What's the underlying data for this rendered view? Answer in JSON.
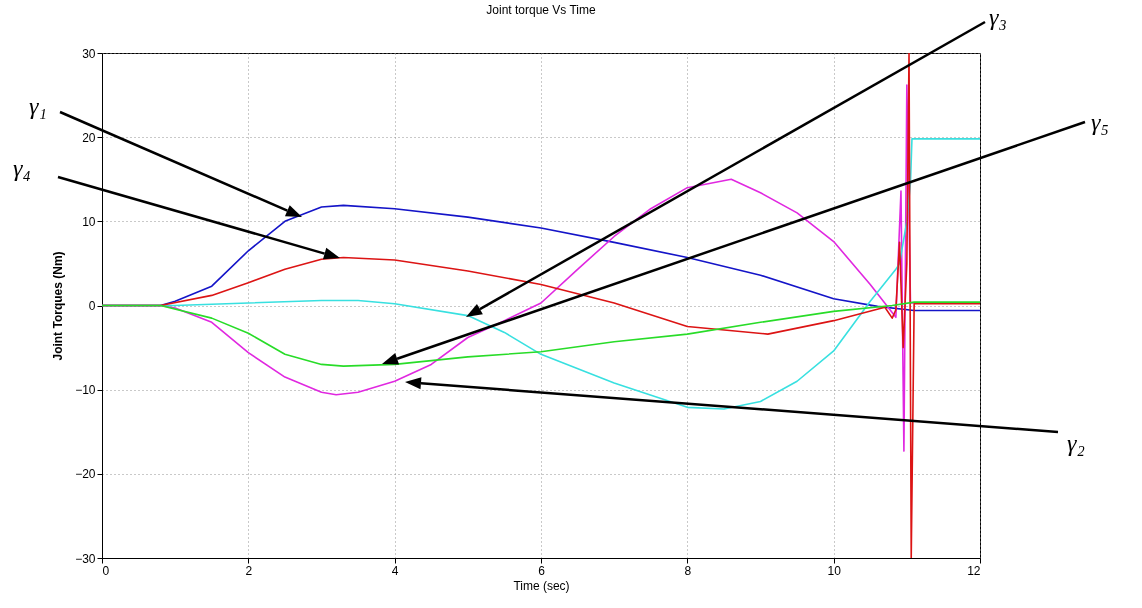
{
  "chart_data": {
    "type": "line",
    "title": "Joint torque Vs Time",
    "xlabel": "Time (sec)",
    "ylabel": "Joint Torques (Nm)",
    "xlim": [
      0,
      12
    ],
    "xticks": [
      0,
      2,
      4,
      6,
      8,
      10,
      12
    ],
    "ylim": [
      -30,
      30
    ],
    "yticks": [
      -30,
      -20,
      -10,
      0,
      10,
      20,
      30
    ],
    "grid": true,
    "line_style": "solid",
    "series": [
      {
        "color": "#1414c8",
        "x": [
          0,
          0.8,
          1,
          1.5,
          2,
          2.5,
          3,
          3.3,
          4,
          5,
          6,
          7,
          8,
          9,
          10,
          10.6,
          11.1,
          12
        ],
        "values": [
          0,
          0,
          0.5,
          2.3,
          6.5,
          10,
          11.7,
          11.9,
          11.5,
          10.5,
          9.2,
          7.5,
          5.7,
          3.6,
          0.8,
          -0.1,
          -0.6,
          -0.6
        ]
      },
      {
        "color": "#e028e0",
        "x": [
          0,
          0.8,
          1,
          1.5,
          2,
          2.5,
          3,
          3.2,
          3.5,
          4,
          4.5,
          5,
          5.5,
          6,
          6.5,
          7,
          7.5,
          8,
          8.6,
          9,
          9.5,
          10,
          10.5,
          10.85,
          10.92,
          10.96,
          11,
          11.05,
          12
        ],
        "values": [
          0,
          0,
          -0.3,
          -2,
          -5.6,
          -8.5,
          -10.3,
          -10.6,
          -10.3,
          -9,
          -7,
          -3.8,
          -1.8,
          0.3,
          4.3,
          8.2,
          11.5,
          14,
          15,
          13.4,
          11,
          7.6,
          2.5,
          -1.4,
          13.6,
          -17.3,
          26.2,
          0.3,
          0.3
        ]
      },
      {
        "color": "#38e0e0",
        "x": [
          0,
          1,
          2,
          3,
          3.5,
          4,
          5,
          5.5,
          6,
          7,
          8,
          8.5,
          9,
          9.5,
          10,
          10.5,
          10.85,
          10.9,
          11,
          11.05,
          11.07,
          12
        ],
        "values": [
          0,
          0,
          0.3,
          0.6,
          0.6,
          0.2,
          -1.2,
          -3.2,
          -5.8,
          -9.2,
          -12.1,
          -12.3,
          -11.4,
          -9,
          -5.4,
          0.5,
          4.3,
          5,
          10,
          14.6,
          19.8,
          19.8
        ]
      },
      {
        "color": "#dc1414",
        "x": [
          0,
          0.8,
          1.5,
          2,
          2.5,
          3,
          3.3,
          4,
          5,
          6,
          7,
          8,
          9.1,
          10,
          10.7,
          10.8,
          10.85,
          10.9,
          10.95,
          11,
          11.03,
          11.06,
          11.1,
          12
        ],
        "values": [
          0,
          0,
          1.2,
          2.7,
          4.3,
          5.5,
          5.7,
          5.4,
          4.1,
          2.5,
          0.3,
          -2.5,
          -3.4,
          -1.8,
          -0.2,
          -1.5,
          -0.5,
          7.5,
          -5,
          5,
          30,
          -30,
          0.2,
          0.2
        ]
      },
      {
        "color": "#28dc28",
        "x": [
          0,
          0.8,
          1.5,
          2,
          2.5,
          3,
          3.3,
          4,
          5,
          6,
          7,
          8,
          9,
          10,
          10.8,
          11.1,
          12
        ],
        "values": [
          0,
          0,
          -1.5,
          -3.3,
          -5.8,
          -7,
          -7.2,
          -7,
          -6.1,
          -5.5,
          -4.3,
          -3.4,
          -2,
          -0.7,
          0,
          0.4,
          0.4
        ]
      }
    ],
    "annotations": [
      "γ₁",
      "γ₂",
      "γ₃",
      "γ₄",
      "γ₅"
    ]
  }
}
